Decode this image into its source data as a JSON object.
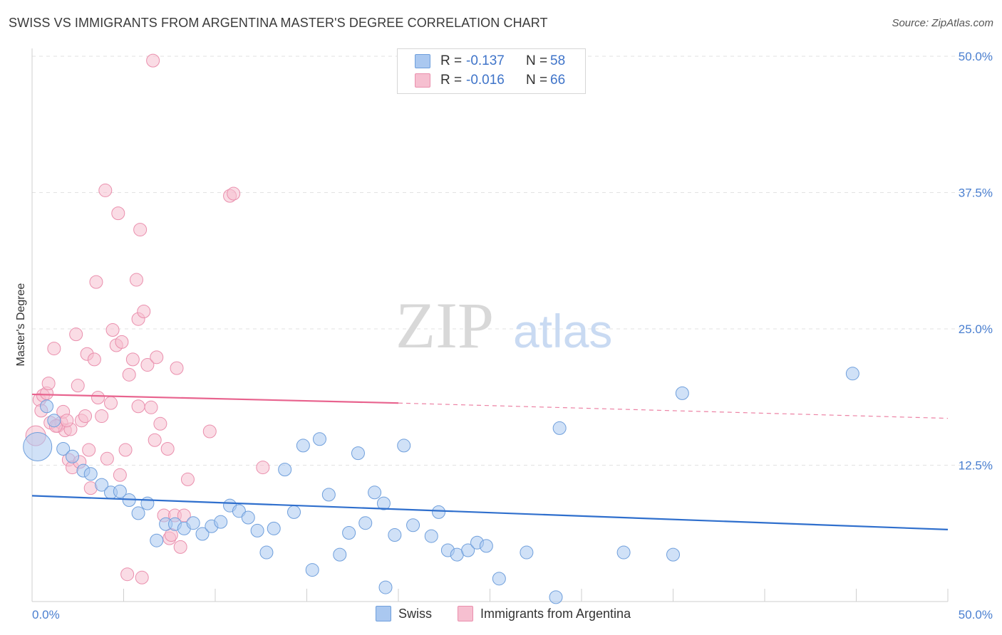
{
  "title": "SWISS VS IMMIGRANTS FROM ARGENTINA MASTER'S DEGREE CORRELATION CHART",
  "source": "Source: ZipAtlas.com",
  "watermark": {
    "zip": "ZIP",
    "atlas": "atlas"
  },
  "legend": {
    "r_label": "R =",
    "n_label": "N =",
    "swiss": {
      "r": "-0.137",
      "n": "58"
    },
    "argentina": {
      "r": "-0.016",
      "n": "66"
    }
  },
  "bottom_legend": {
    "swiss": "Swiss",
    "argentina": "Immigrants from Argentina"
  },
  "colors": {
    "swiss_fill": "#aac8f0",
    "swiss_stroke": "#6f9fdc",
    "swiss_line": "#2f6fcd",
    "arg_fill": "#f6bfd0",
    "arg_stroke": "#ea8fad",
    "arg_line": "#e8638e",
    "tick_text": "#4a7fd0",
    "grid": "#e2e2e2"
  },
  "chart_data": {
    "type": "scatter",
    "xlabel": "",
    "ylabel": "Master's Degree",
    "xlim": [
      0,
      50
    ],
    "ylim": [
      0,
      50
    ],
    "x_tick_labels": [
      "0.0%",
      "50.0%"
    ],
    "y_tick_labels": [
      "12.5%",
      "25.0%",
      "37.5%",
      "50.0%"
    ],
    "y_ticks": [
      12.5,
      25.0,
      37.5,
      50.0
    ],
    "grid": true,
    "legend_position": "top-center",
    "series": [
      {
        "name": "Swiss",
        "trend": {
          "x0": 0,
          "y0": 9.7,
          "x1": 50,
          "y1": 6.6
        },
        "points": [
          [
            0.3,
            14.2,
            20
          ],
          [
            0.8,
            17.9,
            9
          ],
          [
            1.2,
            16.6,
            9
          ],
          [
            1.7,
            14.0,
            9
          ],
          [
            2.2,
            13.3,
            9
          ],
          [
            2.8,
            12.0,
            9
          ],
          [
            3.2,
            11.7,
            9
          ],
          [
            3.8,
            10.7,
            9
          ],
          [
            4.3,
            10.0,
            9
          ],
          [
            4.8,
            10.1,
            9
          ],
          [
            5.3,
            9.3,
            9
          ],
          [
            5.8,
            8.1,
            9
          ],
          [
            6.3,
            9.0,
            9
          ],
          [
            6.8,
            5.6,
            9
          ],
          [
            7.3,
            7.1,
            9
          ],
          [
            7.8,
            7.1,
            9
          ],
          [
            8.3,
            6.7,
            9
          ],
          [
            8.8,
            7.2,
            9
          ],
          [
            9.3,
            6.2,
            9
          ],
          [
            9.8,
            6.9,
            9
          ],
          [
            10.3,
            7.3,
            9
          ],
          [
            10.8,
            8.8,
            9
          ],
          [
            11.3,
            8.3,
            9
          ],
          [
            11.8,
            7.7,
            9
          ],
          [
            12.3,
            6.5,
            9
          ],
          [
            12.8,
            4.5,
            9
          ],
          [
            13.2,
            6.7,
            9
          ],
          [
            13.8,
            12.1,
            9
          ],
          [
            14.3,
            8.2,
            9
          ],
          [
            14.8,
            14.3,
            9
          ],
          [
            15.3,
            2.9,
            9
          ],
          [
            15.7,
            14.9,
            9
          ],
          [
            16.2,
            9.8,
            9
          ],
          [
            16.8,
            4.3,
            9
          ],
          [
            17.3,
            6.3,
            9
          ],
          [
            17.8,
            13.6,
            9
          ],
          [
            18.2,
            7.2,
            9
          ],
          [
            18.7,
            10.0,
            9
          ],
          [
            19.2,
            9.0,
            9
          ],
          [
            19.3,
            1.3,
            9
          ],
          [
            19.8,
            6.1,
            9
          ],
          [
            20.3,
            14.3,
            9
          ],
          [
            20.8,
            7.0,
            9
          ],
          [
            21.8,
            6.0,
            9
          ],
          [
            22.2,
            8.2,
            9
          ],
          [
            22.7,
            4.7,
            9
          ],
          [
            23.2,
            4.3,
            9
          ],
          [
            23.8,
            4.7,
            9
          ],
          [
            24.3,
            5.4,
            9
          ],
          [
            24.8,
            5.1,
            9
          ],
          [
            25.5,
            2.1,
            9
          ],
          [
            27.0,
            4.5,
            9
          ],
          [
            28.6,
            0.4,
            9
          ],
          [
            28.8,
            15.9,
            9
          ],
          [
            32.3,
            4.5,
            9
          ],
          [
            35.0,
            4.3,
            9
          ],
          [
            35.5,
            19.1,
            9
          ],
          [
            44.8,
            20.9,
            9
          ]
        ]
      },
      {
        "name": "Immigrants from Argentina",
        "trend": {
          "x0": 0,
          "y0": 19.0,
          "x1": 20,
          "y1": 18.2,
          "x2": 50,
          "y2": 16.8
        },
        "points": [
          [
            0.2,
            15.2,
            14
          ],
          [
            0.4,
            18.5,
            9
          ],
          [
            0.6,
            18.9,
            9
          ],
          [
            0.8,
            19.1,
            9
          ],
          [
            1.0,
            16.4,
            9
          ],
          [
            1.2,
            23.2,
            9
          ],
          [
            1.4,
            16.1,
            9
          ],
          [
            1.6,
            16.4,
            9
          ],
          [
            1.8,
            15.7,
            9
          ],
          [
            2.0,
            13.0,
            9
          ],
          [
            2.2,
            12.3,
            9
          ],
          [
            2.4,
            24.5,
            9
          ],
          [
            2.5,
            19.8,
            9
          ],
          [
            2.7,
            16.6,
            9
          ],
          [
            2.9,
            17.0,
            9
          ],
          [
            3.0,
            22.7,
            9
          ],
          [
            3.2,
            10.4,
            9
          ],
          [
            3.4,
            22.2,
            9
          ],
          [
            3.5,
            29.3,
            9
          ],
          [
            3.6,
            18.7,
            9
          ],
          [
            3.8,
            17.0,
            9
          ],
          [
            4.0,
            37.7,
            9
          ],
          [
            4.1,
            13.1,
            9
          ],
          [
            4.3,
            18.2,
            9
          ],
          [
            4.4,
            24.9,
            9
          ],
          [
            4.6,
            23.5,
            9
          ],
          [
            4.7,
            35.6,
            9
          ],
          [
            4.8,
            11.6,
            9
          ],
          [
            4.9,
            23.8,
            9
          ],
          [
            5.1,
            13.9,
            9
          ],
          [
            5.2,
            2.5,
            9
          ],
          [
            5.3,
            20.8,
            9
          ],
          [
            5.5,
            22.2,
            9
          ],
          [
            5.7,
            29.5,
            9
          ],
          [
            5.8,
            25.9,
            9
          ],
          [
            5.8,
            17.9,
            9
          ],
          [
            5.9,
            34.1,
            9
          ],
          [
            6.0,
            2.2,
            9
          ],
          [
            6.1,
            26.6,
            9
          ],
          [
            6.3,
            21.7,
            9
          ],
          [
            6.5,
            17.8,
            9
          ],
          [
            6.6,
            49.6,
            9
          ],
          [
            6.7,
            14.8,
            9
          ],
          [
            6.8,
            22.4,
            9
          ],
          [
            7.0,
            16.3,
            9
          ],
          [
            7.2,
            7.9,
            9
          ],
          [
            7.4,
            14.0,
            9
          ],
          [
            7.5,
            5.8,
            9
          ],
          [
            7.6,
            6.1,
            9
          ],
          [
            7.8,
            7.9,
            9
          ],
          [
            7.9,
            21.4,
            9
          ],
          [
            8.1,
            5.0,
            9
          ],
          [
            8.3,
            7.9,
            9
          ],
          [
            8.5,
            11.2,
            9
          ],
          [
            9.7,
            15.6,
            9
          ],
          [
            10.8,
            37.2,
            9
          ],
          [
            11.0,
            37.4,
            9
          ],
          [
            12.6,
            12.3,
            9
          ],
          [
            1.3,
            16.1,
            9
          ],
          [
            1.7,
            17.4,
            9
          ],
          [
            2.1,
            15.8,
            9
          ],
          [
            0.9,
            20.0,
            9
          ],
          [
            1.9,
            16.6,
            9
          ],
          [
            2.6,
            12.8,
            9
          ],
          [
            3.1,
            13.9,
            9
          ],
          [
            0.5,
            17.5,
            9
          ]
        ]
      }
    ]
  }
}
